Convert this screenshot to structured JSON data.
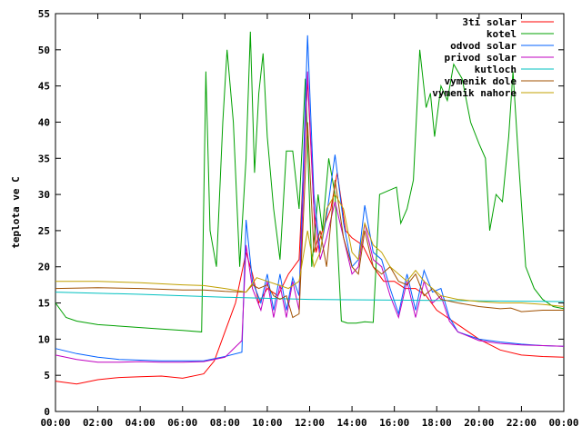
{
  "chart_data": {
    "type": "line",
    "title": "",
    "xlabel": "",
    "ylabel": "teplota ve C",
    "xlim": [
      0,
      24
    ],
    "ylim": [
      0,
      55
    ],
    "x_ticks": [
      "00:00",
      "02:00",
      "04:00",
      "06:00",
      "08:00",
      "10:00",
      "12:00",
      "14:00",
      "16:00",
      "18:00",
      "20:00",
      "22:00",
      "00:00"
    ],
    "y_ticks": [
      0,
      5,
      10,
      15,
      20,
      25,
      30,
      35,
      40,
      45,
      50,
      55
    ],
    "grid": false,
    "legend_position": "top-right",
    "series": [
      {
        "name": "3ti solar",
        "color": "#ff0000",
        "points": [
          [
            0,
            4.2
          ],
          [
            1,
            3.8
          ],
          [
            2,
            4.4
          ],
          [
            3,
            4.7
          ],
          [
            4,
            4.8
          ],
          [
            5,
            4.9
          ],
          [
            6,
            4.6
          ],
          [
            7,
            5.2
          ],
          [
            7.5,
            7
          ],
          [
            8,
            11
          ],
          [
            8.5,
            15
          ],
          [
            9,
            22
          ],
          [
            9.3,
            19
          ],
          [
            9.6,
            15
          ],
          [
            10,
            17
          ],
          [
            10.5,
            16
          ],
          [
            11,
            19
          ],
          [
            11.5,
            21
          ],
          [
            11.9,
            46
          ],
          [
            12.3,
            22
          ],
          [
            12.6,
            25
          ],
          [
            13,
            28
          ],
          [
            13.3,
            33
          ],
          [
            13.7,
            25
          ],
          [
            14,
            24
          ],
          [
            14.5,
            23
          ],
          [
            15,
            20
          ],
          [
            15.5,
            18
          ],
          [
            16,
            18
          ],
          [
            16.5,
            17
          ],
          [
            17,
            17
          ],
          [
            17.5,
            16
          ],
          [
            18,
            14
          ],
          [
            18.5,
            13
          ],
          [
            19,
            12
          ],
          [
            19.5,
            11
          ],
          [
            20,
            10
          ],
          [
            21,
            8.5
          ],
          [
            22,
            7.8
          ],
          [
            23,
            7.6
          ],
          [
            24,
            7.5
          ]
        ]
      },
      {
        "name": "kotel",
        "color": "#00a000",
        "points": [
          [
            0,
            15
          ],
          [
            0.5,
            13
          ],
          [
            1,
            12.5
          ],
          [
            2,
            12
          ],
          [
            3,
            11.8
          ],
          [
            4,
            11.6
          ],
          [
            5,
            11.4
          ],
          [
            6,
            11.2
          ],
          [
            6.9,
            11
          ],
          [
            7.1,
            47
          ],
          [
            7.3,
            25
          ],
          [
            7.6,
            20
          ],
          [
            7.9,
            40
          ],
          [
            8.1,
            50
          ],
          [
            8.4,
            40
          ],
          [
            8.7,
            20
          ],
          [
            9,
            35
          ],
          [
            9.2,
            52.5
          ],
          [
            9.4,
            33
          ],
          [
            9.6,
            44
          ],
          [
            9.8,
            49.5
          ],
          [
            10,
            38
          ],
          [
            10.3,
            28
          ],
          [
            10.6,
            21
          ],
          [
            10.9,
            36
          ],
          [
            11.2,
            36
          ],
          [
            11.5,
            28
          ],
          [
            11.8,
            46
          ],
          [
            12.1,
            20
          ],
          [
            12.4,
            30
          ],
          [
            12.6,
            25
          ],
          [
            12.9,
            35
          ],
          [
            13.2,
            30
          ],
          [
            13.5,
            12.5
          ],
          [
            13.8,
            12.2
          ],
          [
            14.2,
            12.2
          ],
          [
            14.6,
            12.4
          ],
          [
            15,
            12.3
          ],
          [
            15.3,
            30
          ],
          [
            15.7,
            30.5
          ],
          [
            16.1,
            31
          ],
          [
            16.3,
            26
          ],
          [
            16.6,
            28
          ],
          [
            16.9,
            32
          ],
          [
            17.2,
            50
          ],
          [
            17.5,
            42
          ],
          [
            17.7,
            44
          ],
          [
            17.9,
            38
          ],
          [
            18.2,
            45
          ],
          [
            18.5,
            43
          ],
          [
            18.8,
            48
          ],
          [
            19.2,
            46
          ],
          [
            19.6,
            40
          ],
          [
            20,
            37
          ],
          [
            20.3,
            35
          ],
          [
            20.5,
            25
          ],
          [
            20.8,
            30
          ],
          [
            21.1,
            29
          ],
          [
            21.4,
            38
          ],
          [
            21.6,
            47
          ],
          [
            21.9,
            33
          ],
          [
            22.2,
            20
          ],
          [
            22.6,
            17
          ],
          [
            23,
            15.5
          ],
          [
            23.5,
            14.5
          ],
          [
            24,
            14.2
          ]
        ]
      },
      {
        "name": "odvod solar",
        "color": "#0060ff",
        "points": [
          [
            0,
            8.7
          ],
          [
            1,
            8
          ],
          [
            2,
            7.5
          ],
          [
            3,
            7.2
          ],
          [
            4,
            7.1
          ],
          [
            5,
            7
          ],
          [
            6,
            7
          ],
          [
            7,
            7
          ],
          [
            8,
            7.6
          ],
          [
            8.8,
            8.2
          ],
          [
            9,
            26.5
          ],
          [
            9.3,
            18
          ],
          [
            9.7,
            15
          ],
          [
            10,
            19
          ],
          [
            10.3,
            14
          ],
          [
            10.6,
            19
          ],
          [
            10.9,
            14
          ],
          [
            11.2,
            18.5
          ],
          [
            11.5,
            16
          ],
          [
            11.9,
            52
          ],
          [
            12.2,
            30
          ],
          [
            12.5,
            22
          ],
          [
            12.8,
            27
          ],
          [
            13.2,
            35.5
          ],
          [
            13.6,
            26
          ],
          [
            14,
            20
          ],
          [
            14.3,
            21
          ],
          [
            14.6,
            28.5
          ],
          [
            15,
            22
          ],
          [
            15.4,
            21
          ],
          [
            15.8,
            17
          ],
          [
            16.2,
            13.5
          ],
          [
            16.6,
            19
          ],
          [
            17,
            14
          ],
          [
            17.4,
            19.5
          ],
          [
            17.8,
            16.5
          ],
          [
            18.2,
            17
          ],
          [
            18.6,
            13
          ],
          [
            19,
            11
          ],
          [
            20,
            10
          ],
          [
            21,
            9.6
          ],
          [
            22,
            9.3
          ],
          [
            23,
            9.1
          ],
          [
            24,
            9
          ]
        ]
      },
      {
        "name": "privod solar",
        "color": "#c000c0",
        "points": [
          [
            0,
            7.8
          ],
          [
            1,
            7.2
          ],
          [
            2,
            6.8
          ],
          [
            3,
            6.8
          ],
          [
            4,
            6.9
          ],
          [
            5,
            6.8
          ],
          [
            6,
            6.8
          ],
          [
            7,
            6.9
          ],
          [
            8,
            7.5
          ],
          [
            8.8,
            9.8
          ],
          [
            9,
            23
          ],
          [
            9.3,
            17
          ],
          [
            9.7,
            14
          ],
          [
            10,
            18
          ],
          [
            10.3,
            13
          ],
          [
            10.6,
            17.5
          ],
          [
            10.9,
            13
          ],
          [
            11.2,
            18
          ],
          [
            11.5,
            14
          ],
          [
            11.9,
            47
          ],
          [
            12.2,
            28
          ],
          [
            12.5,
            21
          ],
          [
            12.8,
            24
          ],
          [
            13.2,
            29
          ],
          [
            13.6,
            24
          ],
          [
            14,
            19
          ],
          [
            14.3,
            20
          ],
          [
            14.6,
            26
          ],
          [
            15,
            21
          ],
          [
            15.4,
            20
          ],
          [
            15.8,
            16
          ],
          [
            16.2,
            13
          ],
          [
            16.6,
            18
          ],
          [
            17,
            13
          ],
          [
            17.4,
            18
          ],
          [
            17.8,
            15
          ],
          [
            18.2,
            16
          ],
          [
            18.6,
            12.5
          ],
          [
            19,
            11
          ],
          [
            20,
            9.8
          ],
          [
            21,
            9.4
          ],
          [
            22,
            9.2
          ],
          [
            23,
            9.1
          ],
          [
            24,
            9
          ]
        ]
      },
      {
        "name": "kutloch",
        "color": "#00c0c0",
        "points": [
          [
            0,
            16.5
          ],
          [
            4,
            16.2
          ],
          [
            8,
            15.8
          ],
          [
            12,
            15.5
          ],
          [
            16,
            15.4
          ],
          [
            20,
            15.3
          ],
          [
            24,
            15.2
          ]
        ]
      },
      {
        "name": "vymenik dole",
        "color": "#a05000",
        "points": [
          [
            0,
            17
          ],
          [
            2,
            17.1
          ],
          [
            4,
            17
          ],
          [
            6,
            16.8
          ],
          [
            7,
            16.8
          ],
          [
            8,
            16.6
          ],
          [
            9,
            16.5
          ],
          [
            9.3,
            17.5
          ],
          [
            9.6,
            17
          ],
          [
            10,
            17.5
          ],
          [
            10.3,
            16
          ],
          [
            10.6,
            15.5
          ],
          [
            10.9,
            16
          ],
          [
            11.2,
            13
          ],
          [
            11.5,
            13.5
          ],
          [
            11.9,
            40
          ],
          [
            12.2,
            22
          ],
          [
            12.5,
            25
          ],
          [
            12.8,
            20
          ],
          [
            13.2,
            32
          ],
          [
            13.6,
            24
          ],
          [
            14,
            20
          ],
          [
            14.3,
            19
          ],
          [
            14.6,
            25
          ],
          [
            15,
            20
          ],
          [
            15.4,
            19
          ],
          [
            15.8,
            20
          ],
          [
            16.2,
            18
          ],
          [
            16.6,
            17.5
          ],
          [
            17,
            19
          ],
          [
            17.4,
            16
          ],
          [
            17.8,
            17
          ],
          [
            18.2,
            15.5
          ],
          [
            19,
            15
          ],
          [
            20,
            14.5
          ],
          [
            21,
            14.2
          ],
          [
            21.5,
            14.3
          ],
          [
            22,
            13.8
          ],
          [
            23,
            14
          ],
          [
            24,
            14
          ]
        ]
      },
      {
        "name": "vymenik nahore",
        "color": "#c0a000",
        "points": [
          [
            0,
            18
          ],
          [
            2,
            18
          ],
          [
            4,
            17.8
          ],
          [
            6,
            17.5
          ],
          [
            7,
            17.4
          ],
          [
            8,
            17
          ],
          [
            9,
            16.5
          ],
          [
            9.5,
            18.5
          ],
          [
            10,
            18
          ],
          [
            10.5,
            17.5
          ],
          [
            11,
            17
          ],
          [
            11.5,
            18
          ],
          [
            11.9,
            25
          ],
          [
            12.2,
            20
          ],
          [
            12.5,
            22
          ],
          [
            12.8,
            28
          ],
          [
            13.2,
            30
          ],
          [
            13.6,
            28
          ],
          [
            14,
            22
          ],
          [
            14.3,
            21
          ],
          [
            14.6,
            26
          ],
          [
            15,
            23
          ],
          [
            15.4,
            22
          ],
          [
            15.8,
            20
          ],
          [
            16.2,
            19
          ],
          [
            16.6,
            18
          ],
          [
            17,
            19.5
          ],
          [
            17.4,
            18
          ],
          [
            17.8,
            17
          ],
          [
            18.2,
            16
          ],
          [
            19,
            15.5
          ],
          [
            20,
            15.2
          ],
          [
            21,
            15
          ],
          [
            22,
            15
          ],
          [
            23,
            14.8
          ],
          [
            24,
            14.5
          ]
        ]
      }
    ]
  }
}
